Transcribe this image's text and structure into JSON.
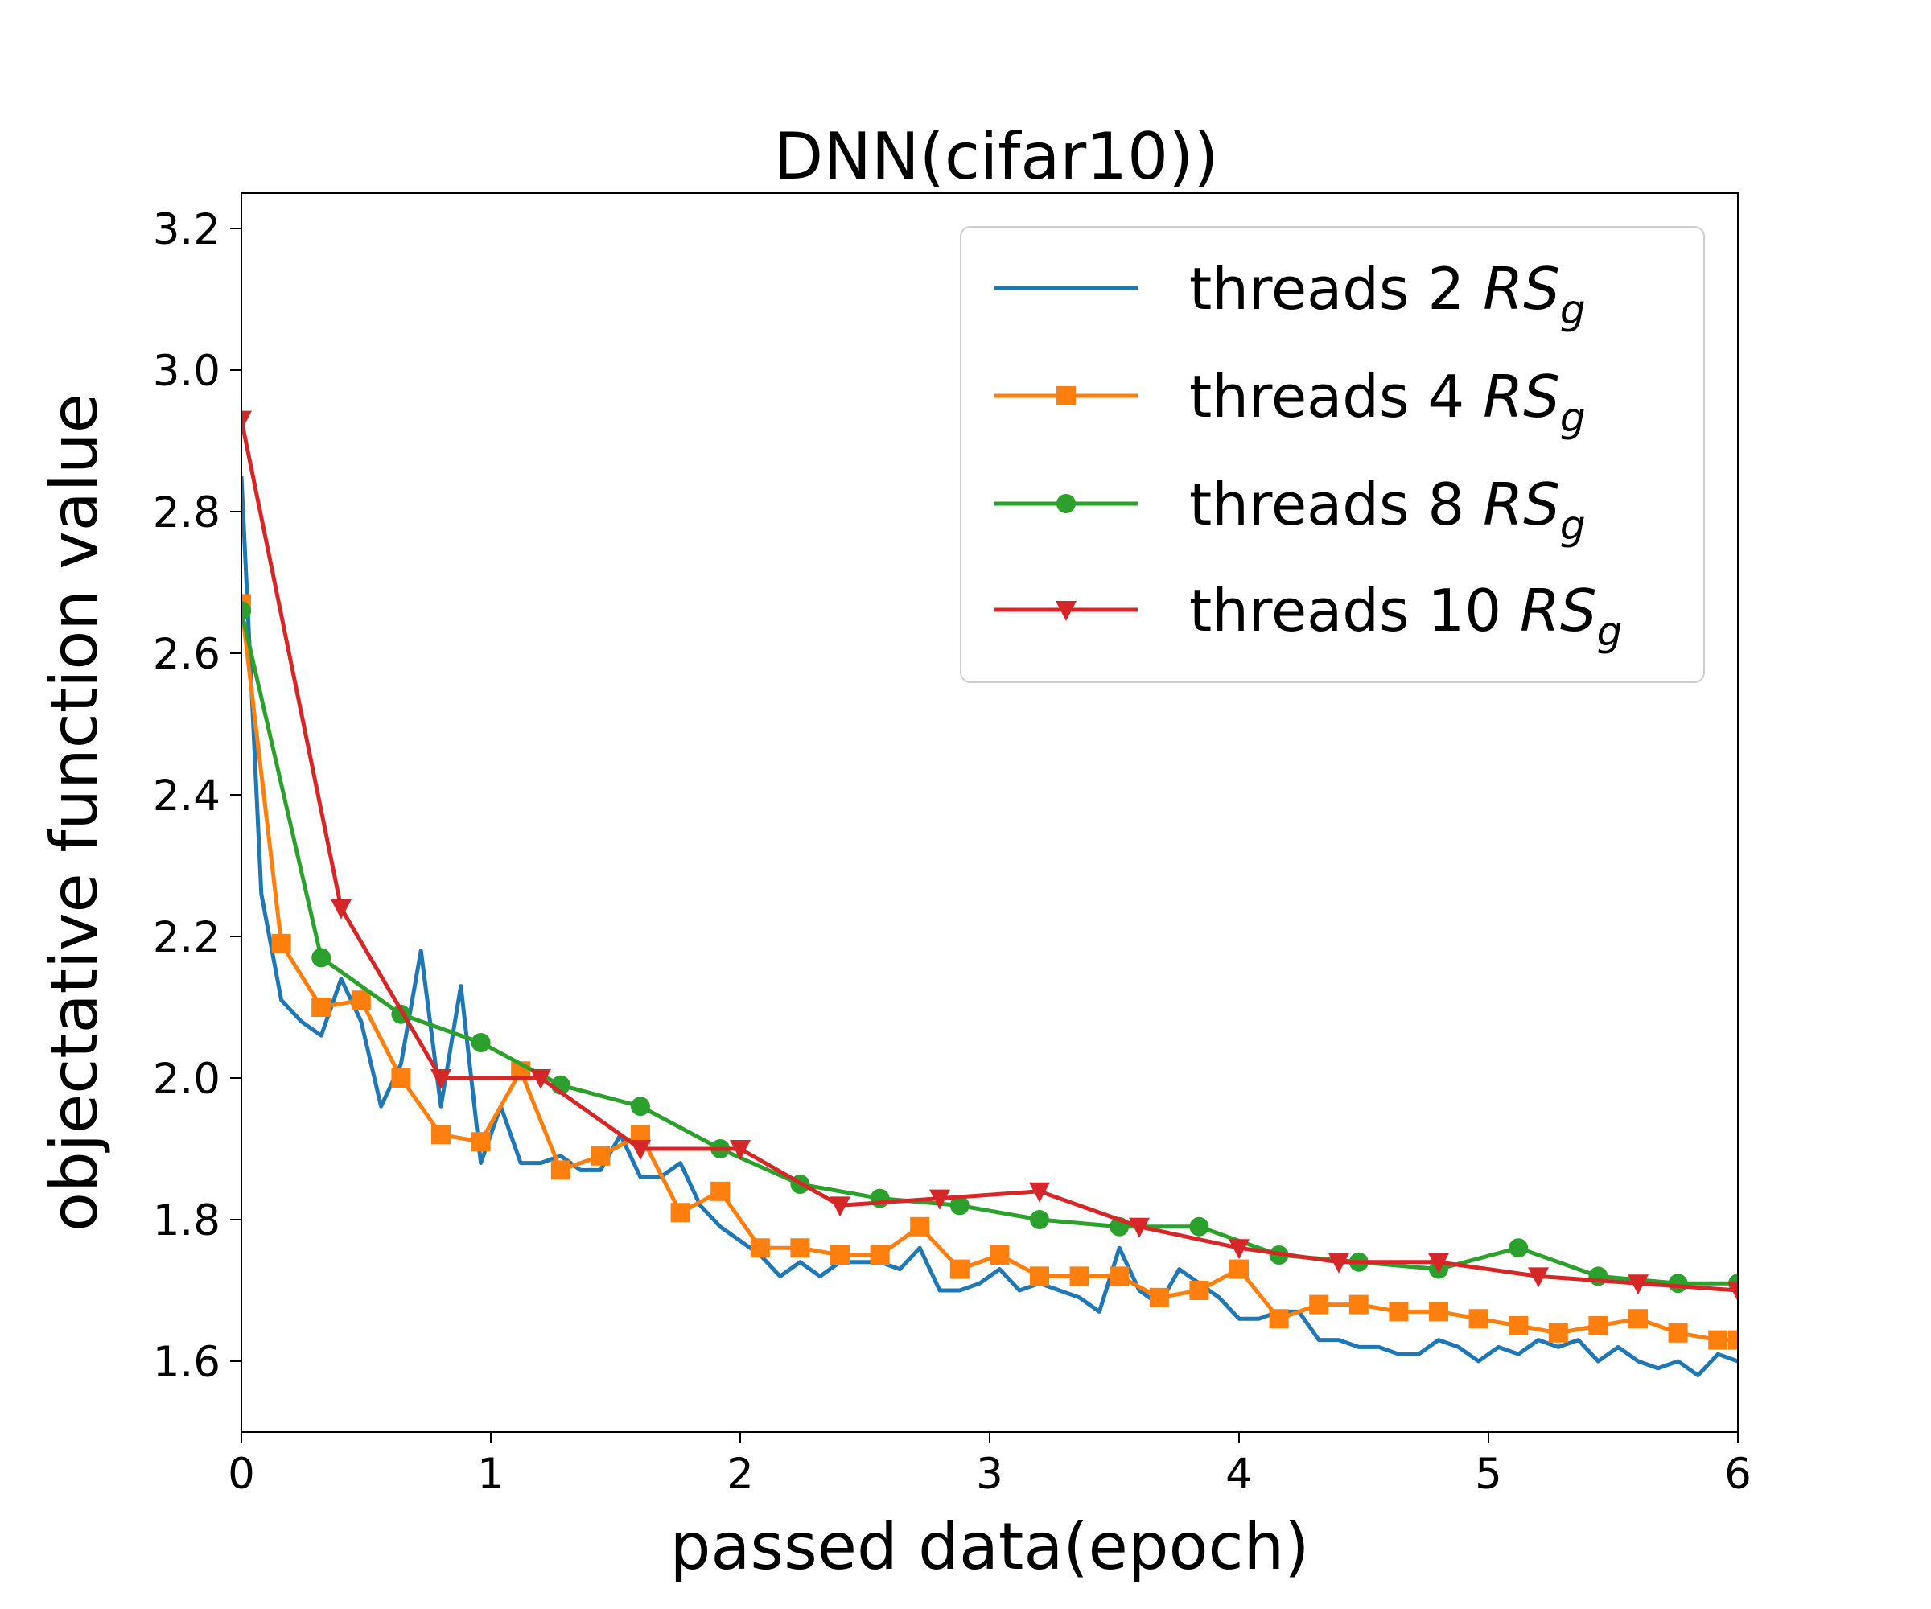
{
  "chart_data": {
    "type": "line",
    "title": "DNN(cifar10))",
    "xlabel": "passed data(epoch)",
    "ylabel": "objectative function value",
    "xlim": [
      0,
      6
    ],
    "ylim": [
      1.5,
      3.25
    ],
    "xticks": [
      0,
      1,
      2,
      3,
      4,
      5,
      6
    ],
    "xtick_labels": [
      "0",
      "1",
      "2",
      "3",
      "4",
      "5",
      "6"
    ],
    "yticks": [
      1.6,
      1.8,
      2.0,
      2.2,
      2.4,
      2.6,
      2.8,
      3.0,
      3.2
    ],
    "ytick_labels": [
      "1.6",
      "1.8",
      "2.0",
      "2.2",
      "2.4",
      "2.6",
      "2.8",
      "3.0",
      "3.2"
    ],
    "grid": false,
    "legend_position": "top-right",
    "series": [
      {
        "name": "threads 2",
        "label": "threads 2 ",
        "suffix": "RS",
        "subscript": "g",
        "color": "#1f77b4",
        "marker": "none",
        "x": [
          0,
          0.08,
          0.16,
          0.24,
          0.32,
          0.4,
          0.48,
          0.56,
          0.64,
          0.72,
          0.8,
          0.88,
          0.96,
          1.04,
          1.12,
          1.2,
          1.28,
          1.36,
          1.44,
          1.52,
          1.6,
          1.68,
          1.76,
          1.84,
          1.92,
          2.0,
          2.08,
          2.16,
          2.24,
          2.32,
          2.4,
          2.48,
          2.56,
          2.64,
          2.72,
          2.8,
          2.88,
          2.96,
          3.04,
          3.12,
          3.2,
          3.28,
          3.36,
          3.44,
          3.52,
          3.6,
          3.68,
          3.76,
          3.84,
          3.92,
          4.0,
          4.08,
          4.16,
          4.24,
          4.32,
          4.4,
          4.48,
          4.56,
          4.64,
          4.72,
          4.8,
          4.88,
          4.96,
          5.04,
          5.12,
          5.2,
          5.28,
          5.36,
          5.44,
          5.52,
          5.6,
          5.68,
          5.76,
          5.84,
          5.92,
          6.0
        ],
        "y": [
          2.85,
          2.26,
          2.11,
          2.08,
          2.06,
          2.14,
          2.08,
          1.96,
          2.02,
          2.18,
          1.96,
          2.13,
          1.88,
          1.96,
          1.88,
          1.88,
          1.89,
          1.87,
          1.87,
          1.92,
          1.86,
          1.86,
          1.88,
          1.82,
          1.79,
          1.77,
          1.75,
          1.72,
          1.74,
          1.72,
          1.74,
          1.74,
          1.74,
          1.73,
          1.76,
          1.7,
          1.7,
          1.71,
          1.73,
          1.7,
          1.71,
          1.7,
          1.69,
          1.67,
          1.76,
          1.7,
          1.68,
          1.73,
          1.71,
          1.69,
          1.66,
          1.66,
          1.67,
          1.67,
          1.63,
          1.63,
          1.62,
          1.62,
          1.61,
          1.61,
          1.63,
          1.62,
          1.6,
          1.62,
          1.61,
          1.63,
          1.62,
          1.63,
          1.6,
          1.62,
          1.6,
          1.59,
          1.6,
          1.58,
          1.61,
          1.6
        ]
      },
      {
        "name": "threads 4",
        "label": "threads 4 ",
        "suffix": "RS",
        "subscript": "g",
        "color": "#ff7f0e",
        "marker": "square",
        "x": [
          0,
          0.16,
          0.32,
          0.48,
          0.64,
          0.8,
          0.96,
          1.12,
          1.28,
          1.44,
          1.6,
          1.76,
          1.92,
          2.08,
          2.24,
          2.4,
          2.56,
          2.72,
          2.88,
          3.04,
          3.2,
          3.36,
          3.52,
          3.68,
          3.84,
          4.0,
          4.16,
          4.32,
          4.48,
          4.64,
          4.8,
          4.96,
          5.12,
          5.28,
          5.44,
          5.6,
          5.76,
          5.92,
          6.0
        ],
        "y": [
          2.67,
          2.19,
          2.1,
          2.11,
          2.0,
          1.92,
          1.91,
          2.01,
          1.87,
          1.89,
          1.92,
          1.81,
          1.84,
          1.76,
          1.76,
          1.75,
          1.75,
          1.79,
          1.73,
          1.75,
          1.72,
          1.72,
          1.72,
          1.69,
          1.7,
          1.73,
          1.66,
          1.68,
          1.68,
          1.67,
          1.67,
          1.66,
          1.65,
          1.64,
          1.65,
          1.66,
          1.64,
          1.63,
          1.63
        ]
      },
      {
        "name": "threads 8",
        "label": "threads 8 ",
        "suffix": "RS",
        "subscript": "g",
        "color": "#2ca02c",
        "marker": "circle",
        "x": [
          0,
          0.32,
          0.64,
          0.96,
          1.28,
          1.6,
          1.92,
          2.24,
          2.56,
          2.88,
          3.2,
          3.52,
          3.84,
          4.16,
          4.48,
          4.8,
          5.12,
          5.44,
          5.76,
          6.0
        ],
        "y": [
          2.66,
          2.17,
          2.09,
          2.05,
          1.99,
          1.96,
          1.9,
          1.85,
          1.83,
          1.82,
          1.8,
          1.79,
          1.79,
          1.75,
          1.74,
          1.73,
          1.76,
          1.72,
          1.71,
          1.71
        ]
      },
      {
        "name": "threads 10",
        "label": "threads 10 ",
        "suffix": "RS",
        "subscript": "g",
        "color": "#d62728",
        "marker": "triangle_down",
        "x": [
          0,
          0.4,
          0.8,
          1.2,
          1.6,
          2.0,
          2.4,
          2.8,
          3.2,
          3.6,
          4.0,
          4.4,
          4.8,
          5.2,
          5.6,
          6.0
        ],
        "y": [
          2.93,
          2.24,
          2.0,
          2.0,
          1.9,
          1.9,
          1.82,
          1.83,
          1.84,
          1.79,
          1.76,
          1.74,
          1.74,
          1.72,
          1.71,
          1.7
        ]
      }
    ]
  }
}
